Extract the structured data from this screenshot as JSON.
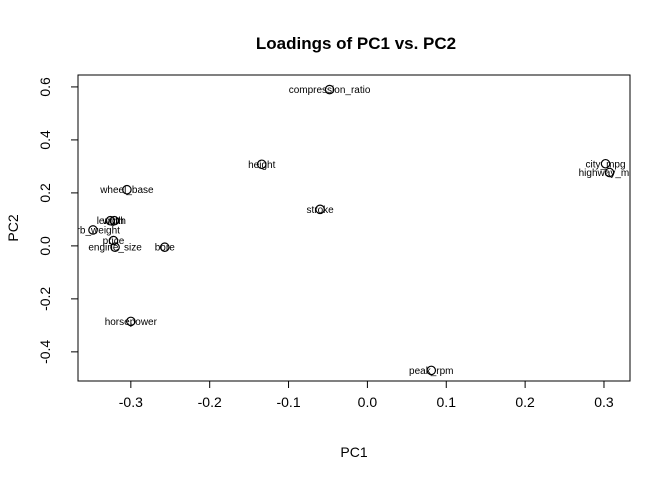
{
  "chart_data": {
    "type": "scatter",
    "title": "Loadings of PC1 vs. PC2",
    "xlabel": "PC1",
    "ylabel": "PC2",
    "xlim": [
      -0.367,
      0.333
    ],
    "ylim": [
      -0.51,
      0.645
    ],
    "xticks": [
      -0.3,
      -0.2,
      -0.1,
      0.0,
      0.1,
      0.2,
      0.3
    ],
    "xtick_labels": [
      "-0.3",
      "-0.2",
      "-0.1",
      "0.0",
      "0.1",
      "0.2",
      "0.3"
    ],
    "yticks": [
      -0.4,
      -0.2,
      0.0,
      0.2,
      0.4,
      0.6
    ],
    "ytick_labels": [
      "-0.4",
      "-0.2",
      "0.0",
      "0.2",
      "0.4",
      "0.6"
    ],
    "grid": false,
    "points": [
      {
        "label": "compression_ratio",
        "x": -0.048,
        "y": 0.59
      },
      {
        "label": "height",
        "x": -0.134,
        "y": 0.308
      },
      {
        "label": "city_mpg",
        "x": 0.302,
        "y": 0.31
      },
      {
        "label": "highway_mpg",
        "x": 0.307,
        "y": 0.277
      },
      {
        "label": "wheel_base",
        "x": -0.305,
        "y": 0.212
      },
      {
        "label": "stroke",
        "x": -0.06,
        "y": 0.138
      },
      {
        "label": "length",
        "x": -0.326,
        "y": 0.095
      },
      {
        "label": "width",
        "x": -0.321,
        "y": 0.095
      },
      {
        "label": "curb_weight",
        "x": -0.348,
        "y": 0.06
      },
      {
        "label": "price",
        "x": -0.322,
        "y": 0.02
      },
      {
        "label": "engine_size",
        "x": -0.32,
        "y": -0.005
      },
      {
        "label": "bore",
        "x": -0.257,
        "y": -0.005
      },
      {
        "label": "horsepower",
        "x": -0.3,
        "y": -0.285
      },
      {
        "label": "peak_rpm",
        "x": 0.081,
        "y": -0.47
      }
    ]
  }
}
